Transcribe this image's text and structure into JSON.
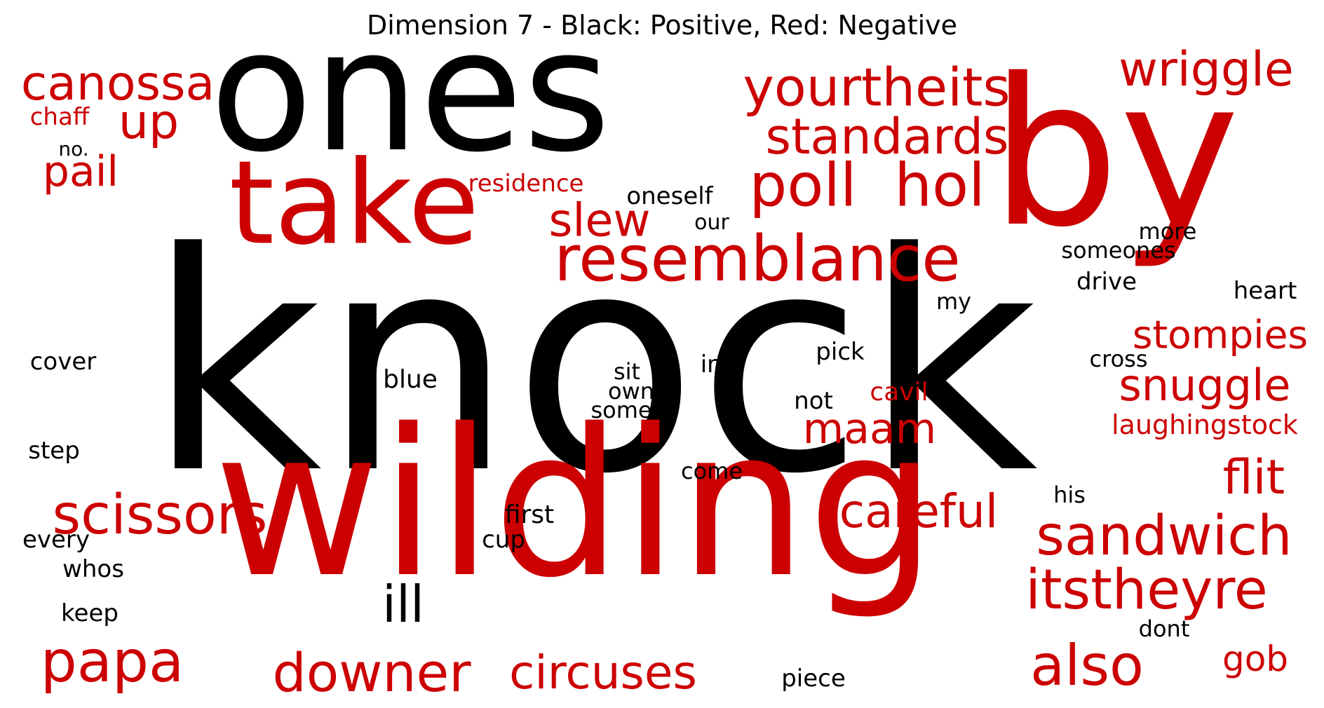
{
  "title": "Dimension 7 - Black: Positive, Red: Negative",
  "colors": {
    "positive": "#000000",
    "negative": "#cc0000"
  },
  "words": [
    {
      "text": "knock",
      "polarity": "positive"
    },
    {
      "text": "ones",
      "polarity": "positive"
    },
    {
      "text": "by",
      "polarity": "negative"
    },
    {
      "text": "wilding",
      "polarity": "negative"
    },
    {
      "text": "take",
      "polarity": "negative"
    },
    {
      "text": "resemblance",
      "polarity": "negative"
    },
    {
      "text": "yourtheits",
      "polarity": "negative"
    },
    {
      "text": "standards",
      "polarity": "negative"
    },
    {
      "text": "poll",
      "polarity": "negative"
    },
    {
      "text": "hol",
      "polarity": "negative"
    },
    {
      "text": "canossa",
      "polarity": "negative"
    },
    {
      "text": "wriggle",
      "polarity": "negative"
    },
    {
      "text": "up",
      "polarity": "negative"
    },
    {
      "text": "pail",
      "polarity": "negative"
    },
    {
      "text": "chaff",
      "polarity": "negative"
    },
    {
      "text": "no.",
      "polarity": "positive"
    },
    {
      "text": "residence",
      "polarity": "negative"
    },
    {
      "text": "oneself",
      "polarity": "positive"
    },
    {
      "text": "slew",
      "polarity": "negative"
    },
    {
      "text": "our",
      "polarity": "positive"
    },
    {
      "text": "more",
      "polarity": "positive"
    },
    {
      "text": "someones",
      "polarity": "positive"
    },
    {
      "text": "drive",
      "polarity": "positive"
    },
    {
      "text": "heart",
      "polarity": "positive"
    },
    {
      "text": "my",
      "polarity": "positive"
    },
    {
      "text": "stompies",
      "polarity": "negative"
    },
    {
      "text": "cross",
      "polarity": "positive"
    },
    {
      "text": "snuggle",
      "polarity": "negative"
    },
    {
      "text": "laughingstock",
      "polarity": "negative"
    },
    {
      "text": "cover",
      "polarity": "positive"
    },
    {
      "text": "blue",
      "polarity": "positive"
    },
    {
      "text": "sit",
      "polarity": "positive"
    },
    {
      "text": "own",
      "polarity": "positive"
    },
    {
      "text": "some",
      "polarity": "positive"
    },
    {
      "text": "im",
      "polarity": "positive"
    },
    {
      "text": "pick",
      "polarity": "positive"
    },
    {
      "text": "not",
      "polarity": "positive"
    },
    {
      "text": "cavil",
      "polarity": "negative"
    },
    {
      "text": "maam",
      "polarity": "negative"
    },
    {
      "text": "step",
      "polarity": "positive"
    },
    {
      "text": "come",
      "polarity": "positive"
    },
    {
      "text": "flit",
      "polarity": "negative"
    },
    {
      "text": "his",
      "polarity": "positive"
    },
    {
      "text": "scissors",
      "polarity": "negative"
    },
    {
      "text": "first",
      "polarity": "positive"
    },
    {
      "text": "cup",
      "polarity": "positive"
    },
    {
      "text": "careful",
      "polarity": "negative"
    },
    {
      "text": "sandwich",
      "polarity": "negative"
    },
    {
      "text": "every",
      "polarity": "positive"
    },
    {
      "text": "whos",
      "polarity": "positive"
    },
    {
      "text": "ill",
      "polarity": "positive"
    },
    {
      "text": "itstheyre",
      "polarity": "negative"
    },
    {
      "text": "keep",
      "polarity": "positive"
    },
    {
      "text": "dont",
      "polarity": "positive"
    },
    {
      "text": "papa",
      "polarity": "negative"
    },
    {
      "text": "downer",
      "polarity": "negative"
    },
    {
      "text": "circuses",
      "polarity": "negative"
    },
    {
      "text": "also",
      "polarity": "negative"
    },
    {
      "text": "gob",
      "polarity": "negative"
    },
    {
      "text": "piece",
      "polarity": "positive"
    }
  ]
}
